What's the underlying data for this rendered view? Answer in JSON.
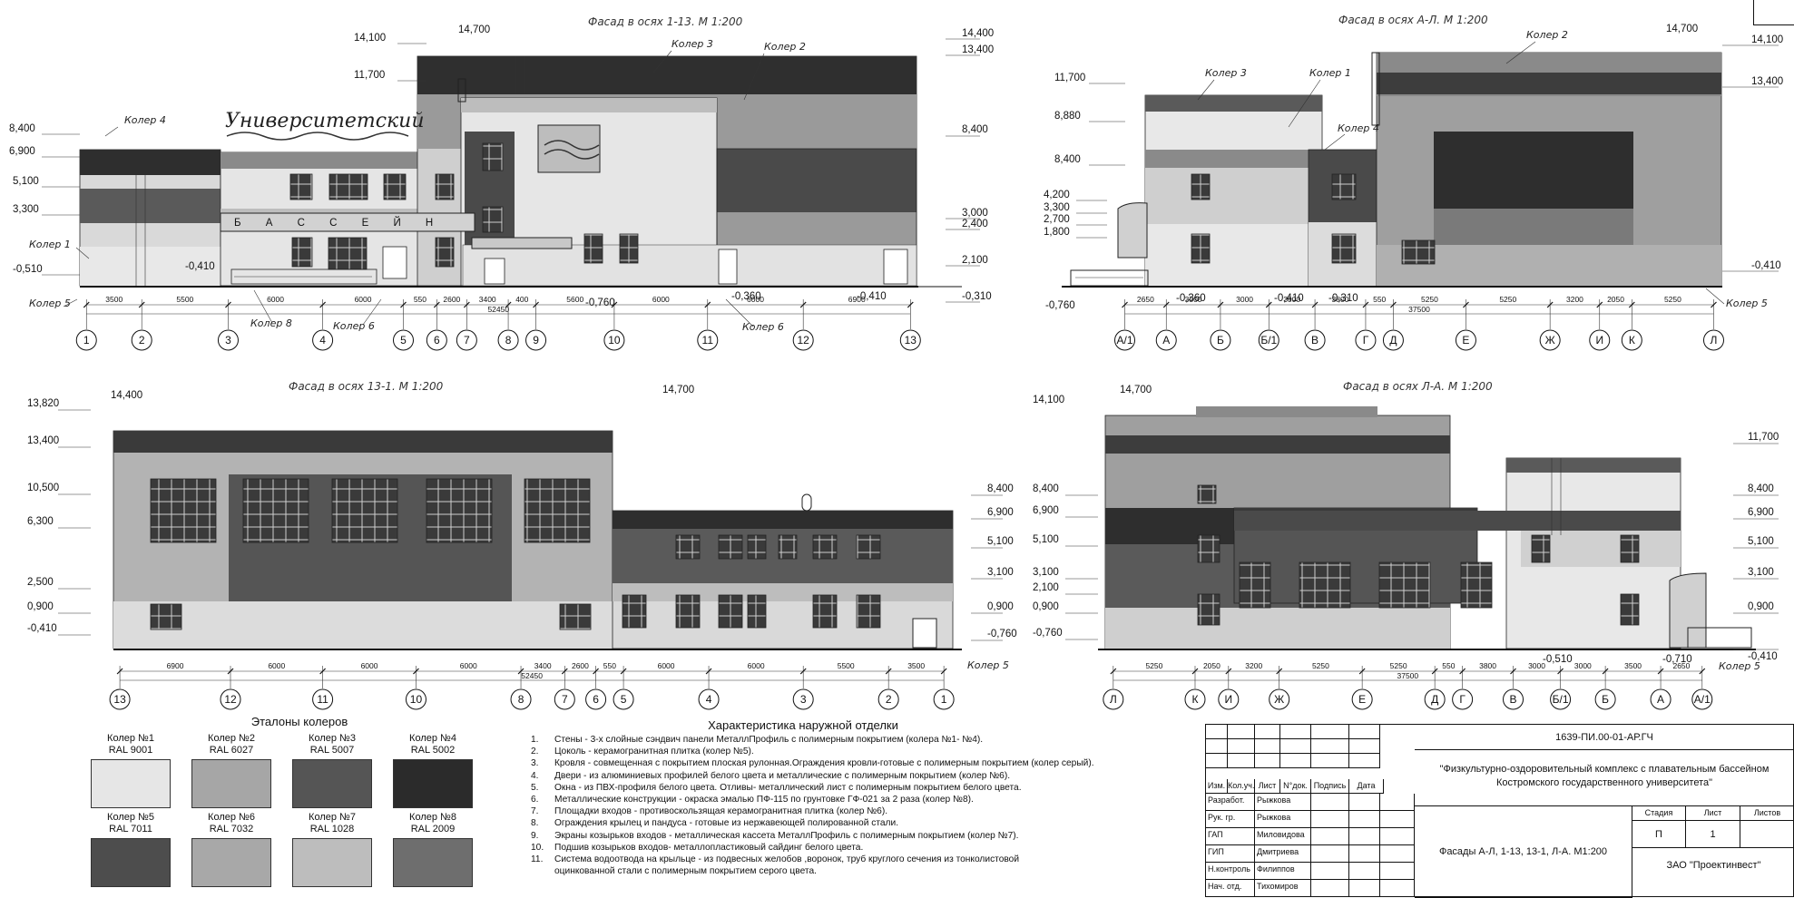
{
  "titles": {
    "f1": "Фасад в осях 1-13. М 1:200",
    "f2": "Фасад в осях А-Л. М 1:200",
    "f3": "Фасад в осях 13-1. М 1:200",
    "f4": "Фасад в осях Л-А. М 1:200"
  },
  "signage": {
    "top": "Университетский",
    "letters": "Б А С С Е Й Н"
  },
  "kolers": {
    "k1": "Колер 1",
    "k2": "Колер 2",
    "k3": "Колер 3",
    "k4": "Колер 4",
    "k5": "Колер 5",
    "k6": "Колер 6",
    "k8": "Колер 8"
  },
  "f1": {
    "el_left": [
      "8,400",
      "6,900",
      "5,100",
      "3,300",
      "-0,510"
    ],
    "el_top": [
      "14,100",
      "11,700",
      "14,700"
    ],
    "el_right": [
      "14,400",
      "13,400",
      "8,400",
      "3,000",
      "2,400",
      "2,100",
      "-0,310"
    ],
    "el_misc": [
      "-0,410",
      "-0,760",
      "-0,360",
      "-0,410"
    ],
    "dims": [
      "3500",
      "5500",
      "6000",
      "6000",
      "550",
      "2600",
      "3400",
      "400",
      "5600",
      "6000",
      "6000",
      "6900"
    ],
    "total": "52450",
    "axes": [
      "1",
      "2",
      "3",
      "4",
      "5",
      "6",
      "7",
      "8",
      "9",
      "10",
      "11",
      "12",
      "13"
    ]
  },
  "f2": {
    "el_left": [
      "11,700",
      "8,880",
      "8,400",
      "4,200",
      "3,300",
      "2,700",
      "1,800",
      "-0,760"
    ],
    "el_top": [
      "14,700"
    ],
    "el_right": [
      "14,100",
      "13,400",
      "-0,410"
    ],
    "el_misc": [
      "-0,360",
      "-0,410",
      "-0,310"
    ],
    "dims": [
      "2650",
      "3500",
      "3000",
      "3000",
      "3800",
      "550",
      "5250",
      "5250",
      "3200",
      "2050",
      "5250"
    ],
    "total": "37500",
    "axes": [
      "А/1",
      "А",
      "Б",
      "Б/1",
      "В",
      "Г",
      "Д",
      "Е",
      "Ж",
      "И",
      "К",
      "Л"
    ]
  },
  "f3": {
    "el_left": [
      "13,820",
      "13,400",
      "10,500",
      "6,300",
      "2,500",
      "0,900",
      "-0,410"
    ],
    "el_top": [
      "14,400",
      "14,700"
    ],
    "el_right": [
      "8,400",
      "6,900",
      "5,100",
      "3,100",
      "0,900",
      "-0,760"
    ],
    "dims": [
      "6900",
      "6000",
      "6000",
      "6000",
      "3400",
      "2600",
      "550",
      "6000",
      "6000",
      "5500",
      "3500"
    ],
    "total": "52450",
    "axes": [
      "13",
      "12",
      "11",
      "10",
      "8",
      "7",
      "6",
      "5",
      "4",
      "3",
      "2",
      "1"
    ]
  },
  "f4": {
    "el_left": [
      "8,400",
      "6,900",
      "5,100",
      "3,100",
      "2,100",
      "0,900",
      "-0,760"
    ],
    "el_top": [
      "14,100",
      "14,700"
    ],
    "el_right": [
      "11,700",
      "8,400",
      "6,900",
      "5,100",
      "3,100",
      "0,900",
      "-0,410"
    ],
    "el_misc": [
      "-0,510",
      "-0,710"
    ],
    "dims": [
      "5250",
      "2050",
      "3200",
      "5250",
      "5250",
      "550",
      "3800",
      "3000",
      "3000",
      "3500",
      "2650"
    ],
    "total": "37500",
    "axes": [
      "Л",
      "К",
      "И",
      "Ж",
      "Е",
      "Д",
      "Г",
      "В",
      "Б/1",
      "Б",
      "А",
      "А/1"
    ]
  },
  "color_standards": {
    "title": "Эталоны колеров",
    "items": [
      {
        "name": "Колер №1",
        "ral": "RAL 9001",
        "color": "#e6e6e6"
      },
      {
        "name": "Колер №2",
        "ral": "RAL 6027",
        "color": "#a6a6a6"
      },
      {
        "name": "Колер №3",
        "ral": "RAL 5007",
        "color": "#555555"
      },
      {
        "name": "Колер №4",
        "ral": "RAL 5002",
        "color": "#2b2b2b"
      },
      {
        "name": "Колер №5",
        "ral": "RAL 7011",
        "color": "#4d4d4d"
      },
      {
        "name": "Колер №6",
        "ral": "RAL 7032",
        "color": "#a8a8a8"
      },
      {
        "name": "Колер №7",
        "ral": "RAL 1028",
        "color": "#bdbdbd"
      },
      {
        "name": "Колер №8",
        "ral": "RAL 2009",
        "color": "#6e6e6e"
      }
    ]
  },
  "finish": {
    "title": "Характеристика наружной отделки",
    "items": [
      {
        "n": "1.",
        "text": "Стены - 3-х слойные сэндвич панели МеталлПрофиль с полимерным покрытием (колера №1- №4)."
      },
      {
        "n": "2.",
        "text": "Цоколь - керамогранитная плитка (колер №5)."
      },
      {
        "n": "3.",
        "text": "Кровля - совмещенная с покрытием плоская рулонная.Ограждения кровли-готовые с полимерным покрытием (колер серый)."
      },
      {
        "n": "4.",
        "text": "Двери - из алюминиевых профилей белого цвета и металлические с полимерным покрытием (колер №6)."
      },
      {
        "n": "5.",
        "text": "Окна - из ПВХ-профиля белого цвета. Отливы- металлический лист с полимерным покрытием белого цвета."
      },
      {
        "n": "6.",
        "text": "Металлические конструкции - окраска эмалью ПФ-115 по грунтовке ГФ-021 за 2 раза (колер №8)."
      },
      {
        "n": "7.",
        "text": "Площадки входов - противоскользящая керамогранитная плитка (колер №6)."
      },
      {
        "n": "8.",
        "text": "Ограждения крылец и пандуса - готовые из нержавеющей полированной стали."
      },
      {
        "n": "9.",
        "text": "Экраны козырьков входов - металлическая кассета МеталлПрофиль с полимерным покрытием (колер №7)."
      },
      {
        "n": "10.",
        "text": "Подшив козырьков входов- металлопластиковый сайдинг белого цвета."
      },
      {
        "n": "11.",
        "text": "Система водоотвода на крыльце - из подвесных желобов ,воронок, труб круглого сечения из тонколистовой"
      },
      {
        "n": "",
        "text": "оцинкованной стали с полимерным покрытием серого цвета."
      }
    ]
  },
  "stamp": {
    "code": "1639-ПИ.00-01-АР.ГЧ",
    "project": "\"Физкультурно-оздоровительный комплекс с плавательным бассейном Костромского государственного университета\"",
    "sheet_title": "Фасады А-Л, 1-13, 13-1, Л-А. М1:200",
    "company": "ЗАО \"Проектинвест\"",
    "head": [
      "Изм.",
      "Кол.уч.",
      "Лист",
      "N°док.",
      "Подпись",
      "Дата"
    ],
    "roles": [
      {
        "role": "Разработ.",
        "name": "Рыжкова"
      },
      {
        "role": "Рук. гр.",
        "name": "Рыжкова"
      },
      {
        "role": "ГАП",
        "name": "Миловидова"
      },
      {
        "role": "ГИП",
        "name": "Дмитриева"
      },
      {
        "role": "Н.контроль",
        "name": "Филиппов"
      },
      {
        "role": "Нач. отд.",
        "name": "Тихомиров"
      }
    ],
    "stage_label": "Стадия",
    "sheet_label": "Лист",
    "sheets_label": "Листов",
    "stage": "П",
    "sheet": "1",
    "sheets": ""
  }
}
